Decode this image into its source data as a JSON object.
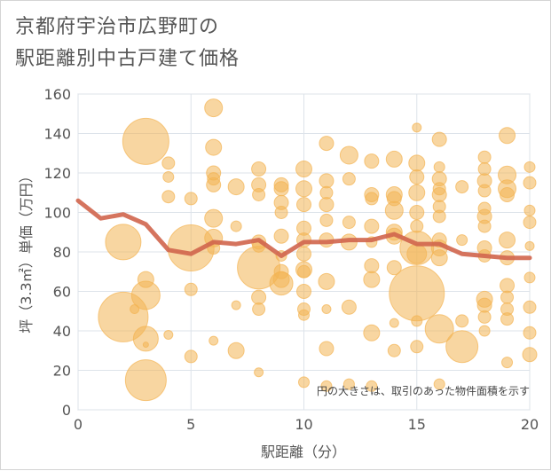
{
  "chart_data": {
    "type": "scatter",
    "title_lines": [
      "京都府宇治市広野町の",
      "駅距離別中古戸建て価格"
    ],
    "xlabel": "駅距離（分）",
    "ylabel": "坪（3.3㎡）単価（万円）",
    "xlim": [
      0,
      20
    ],
    "ylim": [
      0,
      160
    ],
    "x_ticks": [
      "0",
      "5",
      "10",
      "15",
      "20"
    ],
    "y_ticks": [
      "0",
      "20",
      "40",
      "60",
      "80",
      "100",
      "120",
      "140",
      "160"
    ],
    "grid": true,
    "note": "円の大きさは、取引のあった物件面積を示す",
    "colors": {
      "bubble": "#f3b453",
      "line": "#d0654d",
      "grid": "#dde3ea",
      "plot_border": "#c9d3de"
    },
    "series": [
      {
        "type": "bubble",
        "points": [
          {
            "x": 2,
            "y": 47,
            "s": 28
          },
          {
            "x": 2,
            "y": 85,
            "s": 20
          },
          {
            "x": 2.5,
            "y": 51,
            "s": 5
          },
          {
            "x": 3,
            "y": 136,
            "s": 26
          },
          {
            "x": 3,
            "y": 15,
            "s": 23
          },
          {
            "x": 3,
            "y": 58,
            "s": 16
          },
          {
            "x": 3,
            "y": 66,
            "s": 9
          },
          {
            "x": 3,
            "y": 36,
            "s": 14
          },
          {
            "x": 3,
            "y": 33,
            "s": 3
          },
          {
            "x": 4,
            "y": 125,
            "s": 7
          },
          {
            "x": 4,
            "y": 118,
            "s": 6
          },
          {
            "x": 4,
            "y": 108,
            "s": 7
          },
          {
            "x": 4,
            "y": 38,
            "s": 5
          },
          {
            "x": 5,
            "y": 82,
            "s": 26
          },
          {
            "x": 5,
            "y": 107,
            "s": 7
          },
          {
            "x": 5,
            "y": 61,
            "s": 7
          },
          {
            "x": 5,
            "y": 27,
            "s": 7
          },
          {
            "x": 6,
            "y": 153,
            "s": 10
          },
          {
            "x": 6,
            "y": 133,
            "s": 9
          },
          {
            "x": 6,
            "y": 120,
            "s": 8
          },
          {
            "x": 6,
            "y": 117,
            "s": 7
          },
          {
            "x": 6,
            "y": 114,
            "s": 8
          },
          {
            "x": 6,
            "y": 97,
            "s": 10
          },
          {
            "x": 6,
            "y": 87,
            "s": 10
          },
          {
            "x": 6,
            "y": 82,
            "s": 7
          },
          {
            "x": 6,
            "y": 35,
            "s": 5
          },
          {
            "x": 7,
            "y": 113,
            "s": 9
          },
          {
            "x": 7,
            "y": 93,
            "s": 6
          },
          {
            "x": 7,
            "y": 30,
            "s": 9
          },
          {
            "x": 7,
            "y": 53,
            "s": 5
          },
          {
            "x": 8,
            "y": 122,
            "s": 8
          },
          {
            "x": 8,
            "y": 114,
            "s": 8
          },
          {
            "x": 8,
            "y": 109,
            "s": 7
          },
          {
            "x": 8,
            "y": 85,
            "s": 8
          },
          {
            "x": 8,
            "y": 83,
            "s": 7
          },
          {
            "x": 8,
            "y": 72,
            "s": 24
          },
          {
            "x": 8,
            "y": 57,
            "s": 8
          },
          {
            "x": 8,
            "y": 51,
            "s": 7
          },
          {
            "x": 8,
            "y": 19,
            "s": 5
          },
          {
            "x": 9,
            "y": 114,
            "s": 8
          },
          {
            "x": 9,
            "y": 112,
            "s": 8
          },
          {
            "x": 9,
            "y": 105,
            "s": 8
          },
          {
            "x": 9,
            "y": 100,
            "s": 7
          },
          {
            "x": 9,
            "y": 88,
            "s": 8
          },
          {
            "x": 9,
            "y": 70,
            "s": 8
          },
          {
            "x": 9,
            "y": 66,
            "s": 9
          },
          {
            "x": 9,
            "y": 64,
            "s": 13
          },
          {
            "x": 9,
            "y": 78,
            "s": 6
          },
          {
            "x": 10,
            "y": 122,
            "s": 9
          },
          {
            "x": 10,
            "y": 112,
            "s": 9
          },
          {
            "x": 10,
            "y": 104,
            "s": 8
          },
          {
            "x": 10,
            "y": 92,
            "s": 8
          },
          {
            "x": 10,
            "y": 86,
            "s": 8
          },
          {
            "x": 10,
            "y": 79,
            "s": 8
          },
          {
            "x": 10,
            "y": 71,
            "s": 9
          },
          {
            "x": 10,
            "y": 70,
            "s": 7
          },
          {
            "x": 10,
            "y": 60,
            "s": 8
          },
          {
            "x": 10,
            "y": 51,
            "s": 7
          },
          {
            "x": 10,
            "y": 48,
            "s": 6
          },
          {
            "x": 10,
            "y": 14,
            "s": 6
          },
          {
            "x": 11,
            "y": 135,
            "s": 8
          },
          {
            "x": 11,
            "y": 116,
            "s": 8
          },
          {
            "x": 11,
            "y": 110,
            "s": 7
          },
          {
            "x": 11,
            "y": 104,
            "s": 8
          },
          {
            "x": 11,
            "y": 96,
            "s": 7
          },
          {
            "x": 11,
            "y": 86,
            "s": 8
          },
          {
            "x": 11,
            "y": 65,
            "s": 9
          },
          {
            "x": 11,
            "y": 51,
            "s": 5
          },
          {
            "x": 11,
            "y": 31,
            "s": 8
          },
          {
            "x": 11,
            "y": 12,
            "s": 6
          },
          {
            "x": 12,
            "y": 129,
            "s": 10
          },
          {
            "x": 12,
            "y": 117,
            "s": 7
          },
          {
            "x": 12,
            "y": 95,
            "s": 7
          },
          {
            "x": 12,
            "y": 85,
            "s": 9
          },
          {
            "x": 12,
            "y": 52,
            "s": 8
          },
          {
            "x": 12,
            "y": 13,
            "s": 6
          },
          {
            "x": 13,
            "y": 126,
            "s": 8
          },
          {
            "x": 13,
            "y": 109,
            "s": 8
          },
          {
            "x": 13,
            "y": 107,
            "s": 7
          },
          {
            "x": 13,
            "y": 93,
            "s": 8
          },
          {
            "x": 13,
            "y": 85,
            "s": 6
          },
          {
            "x": 13,
            "y": 73,
            "s": 8
          },
          {
            "x": 13,
            "y": 66,
            "s": 9
          },
          {
            "x": 13,
            "y": 39,
            "s": 9
          },
          {
            "x": 13,
            "y": 12,
            "s": 6
          },
          {
            "x": 14,
            "y": 127,
            "s": 9
          },
          {
            "x": 14,
            "y": 109,
            "s": 9
          },
          {
            "x": 14,
            "y": 107,
            "s": 8
          },
          {
            "x": 14,
            "y": 101,
            "s": 10
          },
          {
            "x": 14,
            "y": 90,
            "s": 9
          },
          {
            "x": 14,
            "y": 88,
            "s": 9
          },
          {
            "x": 14,
            "y": 72,
            "s": 8
          },
          {
            "x": 14,
            "y": 44,
            "s": 5
          },
          {
            "x": 14,
            "y": 30,
            "s": 7
          },
          {
            "x": 15,
            "y": 143,
            "s": 5
          },
          {
            "x": 15,
            "y": 125,
            "s": 9
          },
          {
            "x": 15,
            "y": 118,
            "s": 8
          },
          {
            "x": 15,
            "y": 110,
            "s": 9
          },
          {
            "x": 15,
            "y": 100,
            "s": 8
          },
          {
            "x": 15,
            "y": 93,
            "s": 7
          },
          {
            "x": 15,
            "y": 82,
            "s": 19
          },
          {
            "x": 15,
            "y": 79,
            "s": 11
          },
          {
            "x": 15,
            "y": 59,
            "s": 31
          },
          {
            "x": 15,
            "y": 45,
            "s": 6
          },
          {
            "x": 15,
            "y": 32,
            "s": 7
          },
          {
            "x": 16,
            "y": 137,
            "s": 8
          },
          {
            "x": 16,
            "y": 123,
            "s": 6
          },
          {
            "x": 16,
            "y": 117,
            "s": 8
          },
          {
            "x": 16,
            "y": 112,
            "s": 7
          },
          {
            "x": 16,
            "y": 109,
            "s": 8
          },
          {
            "x": 16,
            "y": 103,
            "s": 7
          },
          {
            "x": 16,
            "y": 98,
            "s": 7
          },
          {
            "x": 16,
            "y": 86,
            "s": 8
          },
          {
            "x": 16,
            "y": 82,
            "s": 9
          },
          {
            "x": 16,
            "y": 77,
            "s": 9
          },
          {
            "x": 16,
            "y": 41,
            "s": 16
          },
          {
            "x": 16,
            "y": 13,
            "s": 6
          },
          {
            "x": 17,
            "y": 113,
            "s": 7
          },
          {
            "x": 17,
            "y": 86,
            "s": 6
          },
          {
            "x": 17,
            "y": 45,
            "s": 7
          },
          {
            "x": 17,
            "y": 32,
            "s": 18
          },
          {
            "x": 18,
            "y": 128,
            "s": 7
          },
          {
            "x": 18,
            "y": 122,
            "s": 7
          },
          {
            "x": 18,
            "y": 116,
            "s": 8
          },
          {
            "x": 18,
            "y": 111,
            "s": 7
          },
          {
            "x": 18,
            "y": 102,
            "s": 7
          },
          {
            "x": 18,
            "y": 98,
            "s": 8
          },
          {
            "x": 18,
            "y": 93,
            "s": 7
          },
          {
            "x": 18,
            "y": 82,
            "s": 8
          },
          {
            "x": 18,
            "y": 78,
            "s": 7
          },
          {
            "x": 18,
            "y": 56,
            "s": 9
          },
          {
            "x": 18,
            "y": 53,
            "s": 8
          },
          {
            "x": 18,
            "y": 47,
            "s": 7
          },
          {
            "x": 18,
            "y": 40,
            "s": 6
          },
          {
            "x": 19,
            "y": 139,
            "s": 9
          },
          {
            "x": 19,
            "y": 119,
            "s": 10
          },
          {
            "x": 19,
            "y": 112,
            "s": 10
          },
          {
            "x": 19,
            "y": 109,
            "s": 8
          },
          {
            "x": 19,
            "y": 86,
            "s": 9
          },
          {
            "x": 19,
            "y": 77,
            "s": 8
          },
          {
            "x": 19,
            "y": 63,
            "s": 8
          },
          {
            "x": 19,
            "y": 57,
            "s": 7
          },
          {
            "x": 19,
            "y": 51,
            "s": 7
          },
          {
            "x": 19,
            "y": 46,
            "s": 7
          },
          {
            "x": 19,
            "y": 24,
            "s": 6
          },
          {
            "x": 20,
            "y": 123,
            "s": 6
          },
          {
            "x": 20,
            "y": 115,
            "s": 7
          },
          {
            "x": 20,
            "y": 101,
            "s": 6
          },
          {
            "x": 20,
            "y": 95,
            "s": 7
          },
          {
            "x": 20,
            "y": 83,
            "s": 5
          },
          {
            "x": 20,
            "y": 67,
            "s": 6
          },
          {
            "x": 20,
            "y": 52,
            "s": 7
          },
          {
            "x": 20,
            "y": 39,
            "s": 7
          },
          {
            "x": 20,
            "y": 28,
            "s": 8
          }
        ]
      },
      {
        "type": "line",
        "points": [
          {
            "x": 0,
            "y": 106
          },
          {
            "x": 1,
            "y": 97
          },
          {
            "x": 2,
            "y": 99
          },
          {
            "x": 3,
            "y": 94
          },
          {
            "x": 4,
            "y": 81
          },
          {
            "x": 5,
            "y": 79
          },
          {
            "x": 6,
            "y": 85
          },
          {
            "x": 7,
            "y": 84
          },
          {
            "x": 8,
            "y": 86
          },
          {
            "x": 9,
            "y": 78
          },
          {
            "x": 10,
            "y": 85
          },
          {
            "x": 11,
            "y": 85
          },
          {
            "x": 12,
            "y": 86
          },
          {
            "x": 13,
            "y": 86
          },
          {
            "x": 14,
            "y": 89
          },
          {
            "x": 15,
            "y": 84
          },
          {
            "x": 16,
            "y": 84
          },
          {
            "x": 17,
            "y": 79
          },
          {
            "x": 18,
            "y": 78
          },
          {
            "x": 19,
            "y": 77
          },
          {
            "x": 20,
            "y": 77
          }
        ]
      }
    ]
  }
}
